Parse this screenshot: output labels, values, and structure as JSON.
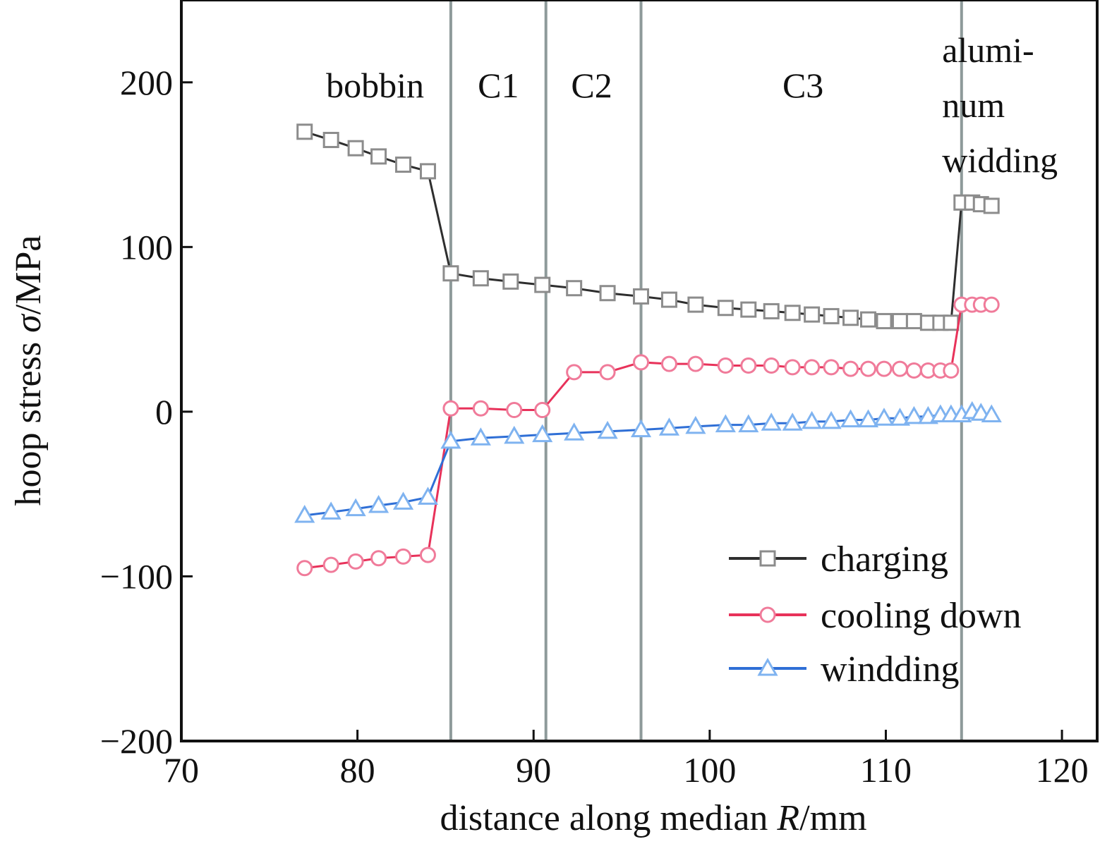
{
  "chart_data": {
    "type": "line",
    "xlabel": "distance along median R/mm",
    "xlabel_parts": {
      "before": "distance along median ",
      "symbol": "R",
      "after": "/mm"
    },
    "ylabel": "hoop stress σ/MPa",
    "ylabel_parts": {
      "before": "hoop stress ",
      "symbol": "σ",
      "after": "/MPa"
    },
    "xlim": [
      70,
      122
    ],
    "ylim": [
      -200,
      250
    ],
    "xticks": [
      70,
      80,
      90,
      100,
      110,
      120
    ],
    "xtick_labels": [
      "70",
      "80",
      "90",
      "100",
      "110",
      "120"
    ],
    "yticks": [
      -200,
      -100,
      0,
      100,
      200
    ],
    "ytick_labels": [
      "−200",
      "−100",
      "0",
      "100",
      "200"
    ],
    "grid": false,
    "legend_position": "lower-right",
    "boundaries": [
      85.3,
      90.7,
      96.1,
      114.3
    ],
    "regions": [
      {
        "label": "bobbin",
        "x": 81.0
      },
      {
        "label": "C1",
        "x": 88.0
      },
      {
        "label": "C2",
        "x": 93.3
      },
      {
        "label": "C3",
        "x": 105.3
      },
      {
        "lines": [
          "alumi-",
          "num",
          "widding"
        ],
        "x": 117.0
      }
    ],
    "colors": {
      "charging_line": "#2e2e2e",
      "charging_marker": "#8c8c8c",
      "cooling_line": "#e8325a",
      "cooling_marker": "#f07b9a",
      "winding_line": "#2f6fd6",
      "winding_marker": "#7fb3f0",
      "boundary": "#8e9a9a"
    },
    "series": [
      {
        "name": "charging",
        "marker": "square",
        "x": [
          77.0,
          78.5,
          79.9,
          81.2,
          82.6,
          84.0,
          85.3,
          87.0,
          88.7,
          90.5,
          92.3,
          94.2,
          96.1,
          97.7,
          99.2,
          100.9,
          102.2,
          103.5,
          104.7,
          105.8,
          106.9,
          108.0,
          109.0,
          109.9,
          110.8,
          111.6,
          112.4,
          113.1,
          113.7,
          114.3,
          114.9,
          115.4,
          116.0
        ],
        "y": [
          170,
          165,
          160,
          155,
          150,
          146,
          84,
          81,
          79,
          77,
          75,
          72,
          70,
          68,
          65,
          63,
          62,
          61,
          60,
          59,
          58,
          57,
          56,
          55,
          55,
          55,
          54,
          54,
          54,
          127,
          127,
          126,
          125
        ]
      },
      {
        "name": "cooling down",
        "marker": "circle",
        "x": [
          77.0,
          78.5,
          79.9,
          81.2,
          82.6,
          84.0,
          85.3,
          87.0,
          88.9,
          90.5,
          92.3,
          94.2,
          96.1,
          97.7,
          99.2,
          100.9,
          102.2,
          103.5,
          104.7,
          105.8,
          106.9,
          108.0,
          109.0,
          109.9,
          110.8,
          111.6,
          112.4,
          113.1,
          113.7,
          114.3,
          114.9,
          115.4,
          116.0
        ],
        "y": [
          -95,
          -93,
          -91,
          -89,
          -88,
          -87,
          2,
          2,
          1,
          1,
          24,
          24,
          30,
          29,
          29,
          28,
          28,
          28,
          27,
          27,
          27,
          26,
          26,
          26,
          26,
          25,
          25,
          25,
          25,
          65,
          65,
          65,
          65
        ]
      },
      {
        "name": "windding",
        "marker": "triangle",
        "x": [
          77.0,
          78.5,
          79.9,
          81.2,
          82.6,
          84.0,
          85.3,
          87.0,
          88.9,
          90.5,
          92.3,
          94.2,
          96.1,
          97.7,
          99.2,
          100.9,
          102.2,
          103.5,
          104.7,
          105.8,
          106.9,
          108.0,
          109.0,
          109.9,
          110.8,
          111.6,
          112.4,
          113.1,
          113.7,
          114.3,
          114.9,
          115.4,
          116.0
        ],
        "y": [
          -63,
          -61,
          -59,
          -57,
          -55,
          -52,
          -18,
          -16,
          -15,
          -14,
          -13,
          -12,
          -11,
          -10,
          -9,
          -8,
          -8,
          -7,
          -7,
          -6,
          -6,
          -5,
          -5,
          -4,
          -4,
          -3,
          -3,
          -2,
          -2,
          -2,
          0,
          -1,
          -2
        ]
      }
    ]
  }
}
